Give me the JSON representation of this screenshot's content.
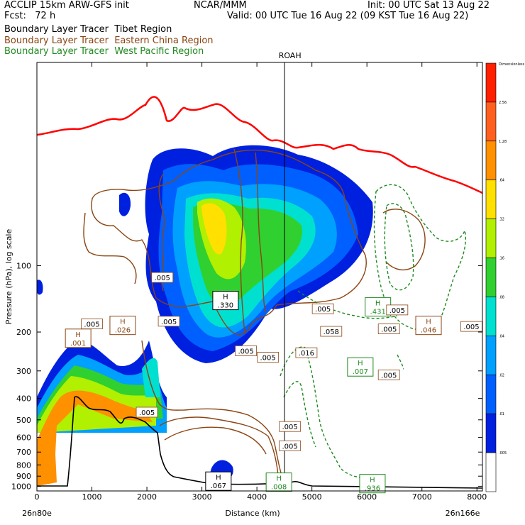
{
  "header": {
    "title_left": "ACCLIP 15km ARW-GFS init",
    "center": "NCAR/MMM",
    "init": "Init: 00 UTC Sat 13 Aug 22",
    "fcst": "Fcst:   72 h",
    "valid": "Valid: 00 UTC Tue 16 Aug 22 (09 KST Tue 16 Aug 22)"
  },
  "legend": [
    {
      "label": "Boundary Layer Tracer  Tibet Region",
      "color": "#000000"
    },
    {
      "label": "Boundary Layer Tracer  Eastern China Region",
      "color": "#8b4513"
    },
    {
      "label": "Boundary Layer Tracer  West Pacific Region",
      "color": "#1f8a1f"
    }
  ],
  "chart_data": {
    "type": "cross-section",
    "xlabel": "Distance (km)",
    "ylabel": "Pressure (hPa), log scale",
    "xlim": [
      0,
      8100
    ],
    "ylim": [
      1050,
      12
    ],
    "y_scale": "log",
    "x_ticks": [
      0,
      1000,
      2000,
      3000,
      4000,
      5000,
      6000,
      7000,
      8000
    ],
    "y_ticks": [
      100,
      200,
      300,
      400,
      500,
      600,
      700,
      800,
      900,
      1000
    ],
    "left_endpoint": "26n80e",
    "right_endpoint": "26n166e",
    "station_marker": {
      "label": "ROAH",
      "x": 4600
    },
    "colorbar_levels": [
      "Dimensionless",
      "2.56",
      "1.28",
      ".64",
      ".32",
      ".16",
      ".08",
      ".04",
      ".02",
      ".01",
      ".005"
    ],
    "colorbar_colors": [
      "#ff2000",
      "#ff6020",
      "#ff9000",
      "#ffe000",
      "#b0f000",
      "#30d030",
      "#00e0d0",
      "#00a0ff",
      "#0060ff",
      "#0020e0",
      "#ffffff"
    ],
    "highs": [
      {
        "x": 3430,
        "p": 145,
        "value": ".330",
        "series": "Tibet"
      },
      {
        "x": 750,
        "p": 215,
        "value": ".001",
        "series": "Eastern China"
      },
      {
        "x": 1560,
        "p": 188,
        "value": ".026",
        "series": "Eastern China"
      },
      {
        "x": 7120,
        "p": 188,
        "value": ".046",
        "series": "Eastern China"
      },
      {
        "x": 6200,
        "p": 155,
        "value": ".431",
        "series": "West Pacific"
      },
      {
        "x": 5880,
        "p": 290,
        "value": ".007",
        "series": "West Pacific"
      },
      {
        "x": 6100,
        "p": 980,
        "value": ".936",
        "series": "West Pacific"
      },
      {
        "x": 3300,
        "p": 955,
        "value": ".067",
        "series": "Tibet"
      },
      {
        "x": 4400,
        "p": 965,
        "value": ".008",
        "series": "West Pacific"
      }
    ],
    "contour_labels": [
      {
        "x": 2280,
        "p": 114,
        "value": ".005"
      },
      {
        "x": 2400,
        "p": 180,
        "value": ".005"
      },
      {
        "x": 1000,
        "p": 185,
        "value": ".005"
      },
      {
        "x": 3800,
        "p": 245,
        "value": ".005"
      },
      {
        "x": 4200,
        "p": 262,
        "value": ".005"
      },
      {
        "x": 4900,
        "p": 250,
        "value": ".016"
      },
      {
        "x": 5200,
        "p": 158,
        "value": ".005"
      },
      {
        "x": 5350,
        "p": 200,
        "value": ".058"
      },
      {
        "x": 6400,
        "p": 195,
        "value": ".005"
      },
      {
        "x": 6550,
        "p": 160,
        "value": ".005"
      },
      {
        "x": 7900,
        "p": 190,
        "value": ".005"
      },
      {
        "x": 6400,
        "p": 315,
        "value": ".005"
      },
      {
        "x": 2000,
        "p": 465,
        "value": ".005"
      },
      {
        "x": 4600,
        "p": 540,
        "value": ".005"
      },
      {
        "x": 4600,
        "p": 660,
        "value": ".005"
      }
    ]
  }
}
